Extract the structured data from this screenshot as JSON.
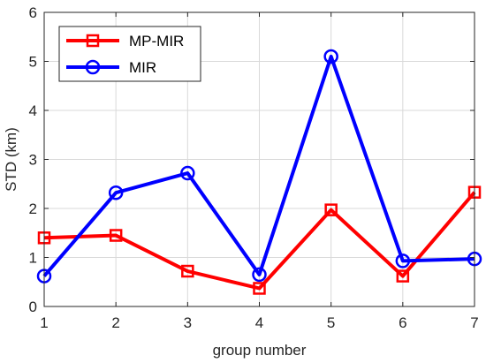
{
  "chart_data": {
    "type": "line",
    "xlabel": "group number",
    "ylabel": "STD (km)",
    "xlim": [
      1,
      7
    ],
    "ylim": [
      0,
      6
    ],
    "x_ticks": [
      "1",
      "2",
      "3",
      "4",
      "5",
      "6",
      "7"
    ],
    "y_ticks": [
      "0",
      "1",
      "2",
      "3",
      "4",
      "5",
      "6"
    ],
    "grid": true,
    "legend_position": "top-left",
    "x": [
      1,
      2,
      3,
      4,
      5,
      6,
      7
    ],
    "series": [
      {
        "name": "MP-MIR",
        "color": "#ff0000",
        "marker": "square",
        "values": [
          1.4,
          1.45,
          0.72,
          0.37,
          1.97,
          0.62,
          2.33
        ]
      },
      {
        "name": "MIR",
        "color": "#0000ff",
        "marker": "circle",
        "values": [
          0.62,
          2.32,
          2.72,
          0.65,
          5.1,
          0.93,
          0.97
        ]
      }
    ]
  }
}
